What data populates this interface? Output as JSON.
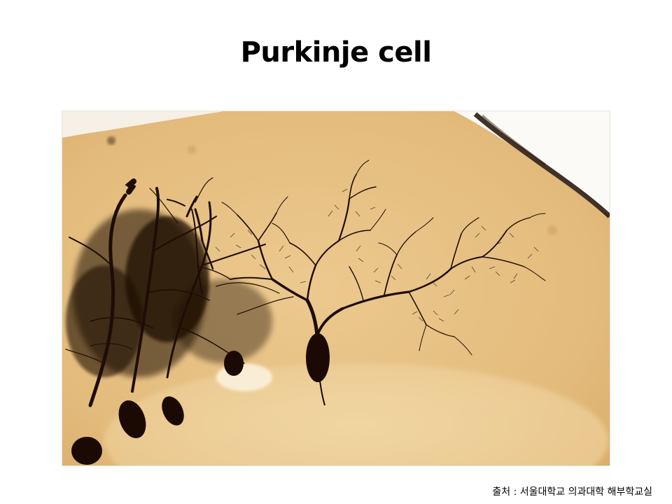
{
  "slide": {
    "title": "Purkinje cell",
    "source_caption": "출처 : 서울대학교 의과대학 해부학교실"
  },
  "photo": {
    "subject": "purkinje-cell-micrograph",
    "colors": {
      "background_tissue": "#e6bf82",
      "light_tissue": "#f0d49f",
      "stain": "#1e0d05",
      "glass": "#ffffff"
    }
  }
}
